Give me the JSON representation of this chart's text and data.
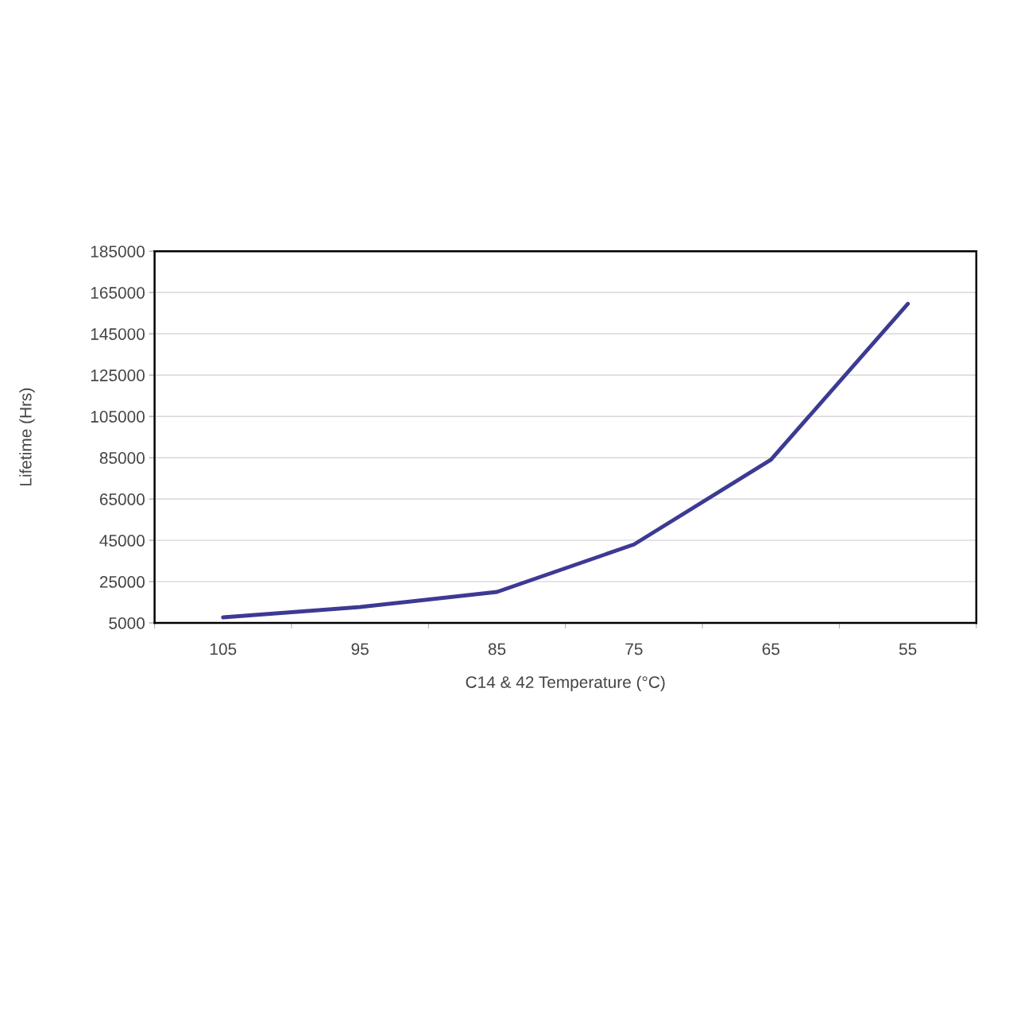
{
  "chart_data": {
    "type": "line",
    "xlabel": "C14 & 42 Temperature (°C)",
    "ylabel": "Lifetime (Hrs)",
    "categories": [
      "105",
      "95",
      "85",
      "75",
      "65",
      "55"
    ],
    "series": [
      {
        "color": "#3c3a92",
        "values": [
          7700,
          12700,
          20000,
          43000,
          84000,
          159500
        ]
      }
    ],
    "ylim": [
      5000,
      185000
    ],
    "yticks": [
      5000,
      25000,
      45000,
      65000,
      85000,
      105000,
      125000,
      145000,
      165000,
      185000
    ],
    "grid": "y",
    "legend": false,
    "marker": "none",
    "line_style": "solid"
  }
}
